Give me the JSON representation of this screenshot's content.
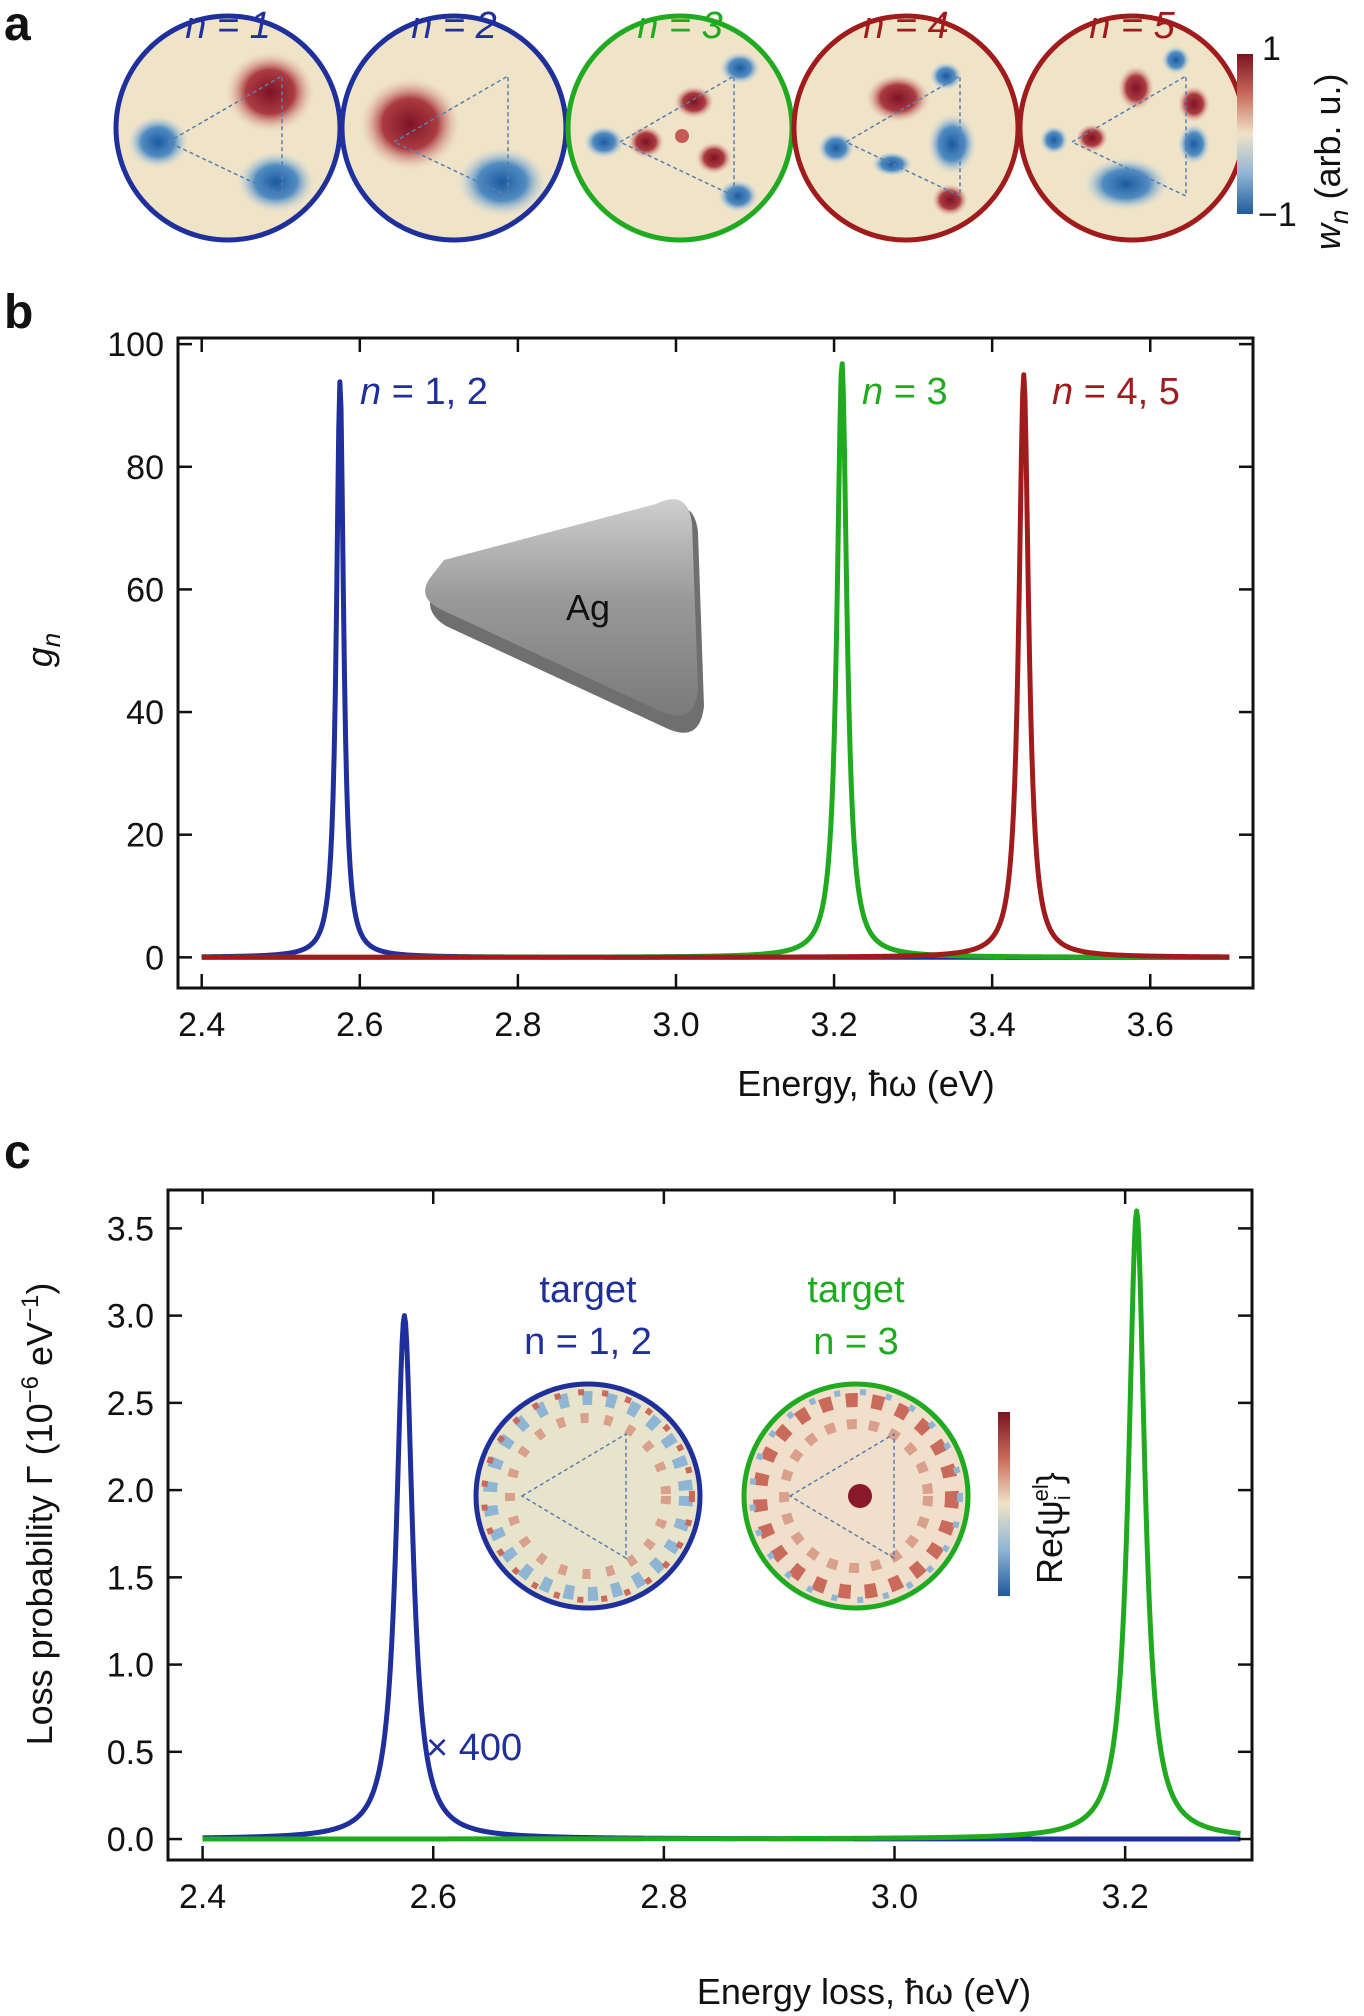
{
  "panels": {
    "a": {
      "letter": "a",
      "maps": [
        {
          "label": "n = 1",
          "color": "#1f2f9c"
        },
        {
          "label": "n = 2",
          "color": "#1f2f9c"
        },
        {
          "label": "n = 3",
          "color": "#1faa1f"
        },
        {
          "label": "n = 4",
          "color": "#a01c1c"
        },
        {
          "label": "n = 5",
          "color": "#a01c1c"
        }
      ],
      "colorbar": {
        "max_label": "1",
        "min_label": "−1",
        "quantity": "w",
        "quantity_sub": "n",
        "unit": " (arb. u.)"
      }
    },
    "b": {
      "letter": "b",
      "inset_material": "Ag"
    },
    "c": {
      "letter": "c",
      "insets": [
        {
          "line1": "target",
          "line2": "n = 1, 2",
          "color": "#1f2f9c"
        },
        {
          "line1": "target",
          "line2": "n = 3",
          "color": "#1faa1f"
        }
      ],
      "colorbar_label": "Re{ψ",
      "colorbar_sub": "i",
      "colorbar_sup": "el",
      "colorbar_close": "}"
    }
  },
  "chart_data": [
    {
      "type": "line",
      "panel": "b",
      "ylabel": "g",
      "ylabel_sub": "n",
      "xlabel": "Energy, ħω (eV)",
      "xlim": [
        2.37,
        3.73
      ],
      "ylim": [
        -5,
        101
      ],
      "xticks": [
        "2.4",
        "2.6",
        "2.8",
        "3.0",
        "3.2",
        "3.4",
        "3.6"
      ],
      "yticks": [
        "0",
        "20",
        "40",
        "60",
        "80",
        "100"
      ],
      "x_range": [
        2.4,
        3.7
      ],
      "series": [
        {
          "name": "n = 1, 2",
          "color": "#1f2f9c",
          "peak_energy": 2.575,
          "peak_value": 94,
          "half_width": 0.0055
        },
        {
          "name": "n = 3",
          "color": "#1faa1f",
          "peak_energy": 3.21,
          "peak_value": 97,
          "half_width": 0.0075
        },
        {
          "name": "n = 4, 5",
          "color": "#a01c1c",
          "peak_energy": 3.44,
          "peak_value": 95,
          "half_width": 0.0075
        }
      ]
    },
    {
      "type": "line",
      "panel": "c",
      "ylabel": "Loss probability Γ (10",
      "ylabel_sup": "−6",
      "ylabel_mid": " eV",
      "ylabel_sup2": "−1",
      "ylabel_end": ")",
      "xlabel": "Energy loss, ħω (eV)",
      "xlim": [
        2.37,
        3.31
      ],
      "ylim": [
        -0.12,
        3.72
      ],
      "xticks": [
        "2.4",
        "2.6",
        "2.8",
        "3.0",
        "3.2"
      ],
      "yticks": [
        "0.0",
        "0.5",
        "1.0",
        "1.5",
        "2.0",
        "2.5",
        "3.0",
        "3.5"
      ],
      "x_range": [
        2.4,
        3.3
      ],
      "annotation": "× 400",
      "series": [
        {
          "color": "#1f2f9c",
          "peak_energy": 2.575,
          "peak_value": 3.0,
          "half_width": 0.0085
        },
        {
          "color": "#1faa1f",
          "peak_energy": 3.21,
          "peak_value": 3.6,
          "half_width": 0.0085
        }
      ]
    }
  ]
}
